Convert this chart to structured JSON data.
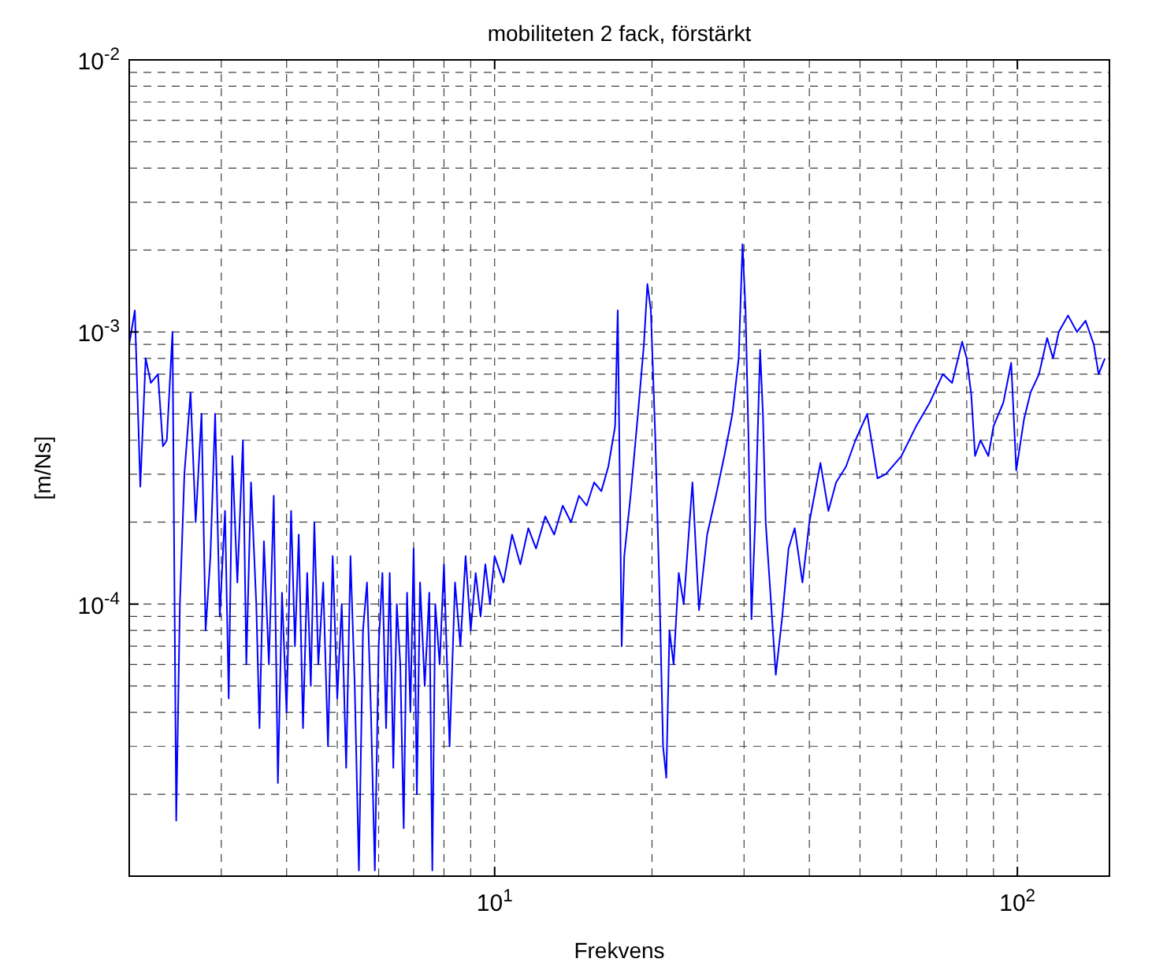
{
  "chart_data": {
    "type": "line",
    "title": "mobiliteten 2 fack, förstärkt",
    "xlabel": "Frekvens",
    "ylabel": "[m/Ns]",
    "log": "xy",
    "grid": true,
    "marker": "none",
    "line_style": "solid",
    "xlim": [
      2,
      150
    ],
    "ylim": [
      1e-05,
      0.01
    ],
    "xticks": [
      {
        "value": 10,
        "label": "10$^{1}$"
      },
      {
        "value": 100,
        "label": "10$^{2}$"
      }
    ],
    "yticks": [
      {
        "value": 0.0001,
        "label": "10$^{-4}$"
      },
      {
        "value": 0.001,
        "label": "10$^{-3}$"
      },
      {
        "value": 0.01,
        "label": "10$^{-2}$"
      }
    ],
    "series": [
      {
        "color": "#0000ff",
        "x": [
          2.0,
          2.05,
          2.1,
          2.15,
          2.2,
          2.27,
          2.32,
          2.36,
          2.42,
          2.46,
          2.5,
          2.55,
          2.62,
          2.68,
          2.75,
          2.8,
          2.86,
          2.92,
          2.98,
          3.05,
          3.1,
          3.15,
          3.22,
          3.3,
          3.35,
          3.42,
          3.5,
          3.55,
          3.62,
          3.7,
          3.78,
          3.85,
          3.92,
          4.0,
          4.08,
          4.15,
          4.22,
          4.3,
          4.38,
          4.45,
          4.52,
          4.6,
          4.7,
          4.8,
          4.9,
          5.0,
          5.1,
          5.2,
          5.3,
          5.4,
          5.5,
          5.6,
          5.7,
          5.8,
          5.9,
          6.0,
          6.1,
          6.2,
          6.3,
          6.4,
          6.5,
          6.6,
          6.7,
          6.8,
          6.9,
          7.0,
          7.1,
          7.2,
          7.35,
          7.5,
          7.6,
          7.7,
          7.85,
          8.0,
          8.2,
          8.4,
          8.6,
          8.8,
          9.0,
          9.2,
          9.4,
          9.6,
          9.8,
          10,
          10.4,
          10.8,
          11.2,
          11.6,
          12,
          12.5,
          13,
          13.5,
          14,
          14.5,
          15,
          15.5,
          16,
          16.5,
          17,
          17.2,
          17.35,
          17.5,
          17.7,
          18.2,
          18.8,
          19.3,
          19.6,
          19.9,
          20.3,
          20.7,
          21.0,
          21.3,
          21.6,
          22,
          22.5,
          23,
          23.9,
          24.6,
          25.5,
          26.5,
          27.5,
          28.5,
          29.3,
          29.8,
          30.2,
          30.6,
          31,
          31.5,
          32.2,
          32.6,
          33,
          33.8,
          34.5,
          35.5,
          36.5,
          37.5,
          38.8,
          40,
          42,
          43.5,
          45,
          47,
          49,
          51.6,
          54,
          56,
          60,
          64,
          68,
          72,
          75,
          78.4,
          80,
          81.6,
          83,
          85,
          88,
          90,
          94,
          97.3,
          99.5,
          103,
          106,
          110,
          114,
          117,
          120,
          125,
          130,
          135,
          140,
          143,
          147
        ],
        "values": [
          0.0009,
          0.0012,
          0.00027,
          0.0008,
          0.00065,
          0.0007,
          0.00038,
          0.0004,
          0.001,
          1.6e-05,
          0.0001,
          0.0003,
          0.0006,
          0.0002,
          0.0005,
          8e-05,
          0.00015,
          0.0005,
          9e-05,
          0.00022,
          4.5e-05,
          0.00035,
          0.00012,
          0.0004,
          6e-05,
          0.00028,
          0.0001,
          3.5e-05,
          0.00017,
          6e-05,
          0.00025,
          2.2e-05,
          0.00011,
          4e-05,
          0.00022,
          7e-05,
          0.00018,
          3.5e-05,
          0.00013,
          5e-05,
          0.0002,
          6e-05,
          0.00012,
          3e-05,
          0.00015,
          4.5e-05,
          0.0001,
          2.5e-05,
          0.00015,
          5e-05,
          1.05e-05,
          8e-05,
          0.00012,
          4e-05,
          1.05e-05,
          7e-05,
          0.00013,
          3.5e-05,
          0.00013,
          2.5e-05,
          0.0001,
          6e-05,
          1.5e-05,
          0.00011,
          4e-05,
          0.00016,
          2e-05,
          0.00012,
          5e-05,
          0.00011,
          1.05e-05,
          0.0001,
          6e-05,
          0.00014,
          3e-05,
          0.00012,
          7e-05,
          0.00015,
          8e-05,
          0.00013,
          9e-05,
          0.00014,
          0.0001,
          0.00015,
          0.00012,
          0.00018,
          0.00014,
          0.00019,
          0.00016,
          0.00021,
          0.00018,
          0.00023,
          0.0002,
          0.00025,
          0.00023,
          0.00028,
          0.00026,
          0.00032,
          0.00045,
          0.0012,
          0.0003,
          7e-05,
          0.00015,
          0.00025,
          0.0005,
          0.0009,
          0.0015,
          0.0012,
          0.0004,
          0.0001,
          3e-05,
          2.3e-05,
          8e-05,
          6e-05,
          0.00013,
          0.0001,
          0.00028,
          9.5e-05,
          0.00018,
          0.00025,
          0.00035,
          0.0005,
          0.0008,
          0.0021,
          0.0012,
          0.0004,
          8.8e-05,
          0.0002,
          0.00086,
          0.0005,
          0.0002,
          0.0001,
          5.5e-05,
          9e-05,
          0.00016,
          0.00019,
          0.00012,
          0.0002,
          0.00033,
          0.00022,
          0.00028,
          0.00032,
          0.0004,
          0.0005,
          0.00029,
          0.0003,
          0.00035,
          0.00045,
          0.00055,
          0.0007,
          0.00065,
          0.00092,
          0.0008,
          0.00059,
          0.00035,
          0.0004,
          0.00035,
          0.00045,
          0.00055,
          0.00077,
          0.00031,
          0.00048,
          0.0006,
          0.0007,
          0.00095,
          0.0008,
          0.001,
          0.00115,
          0.001,
          0.0011,
          0.0009,
          0.0007,
          0.0008
        ]
      }
    ]
  }
}
